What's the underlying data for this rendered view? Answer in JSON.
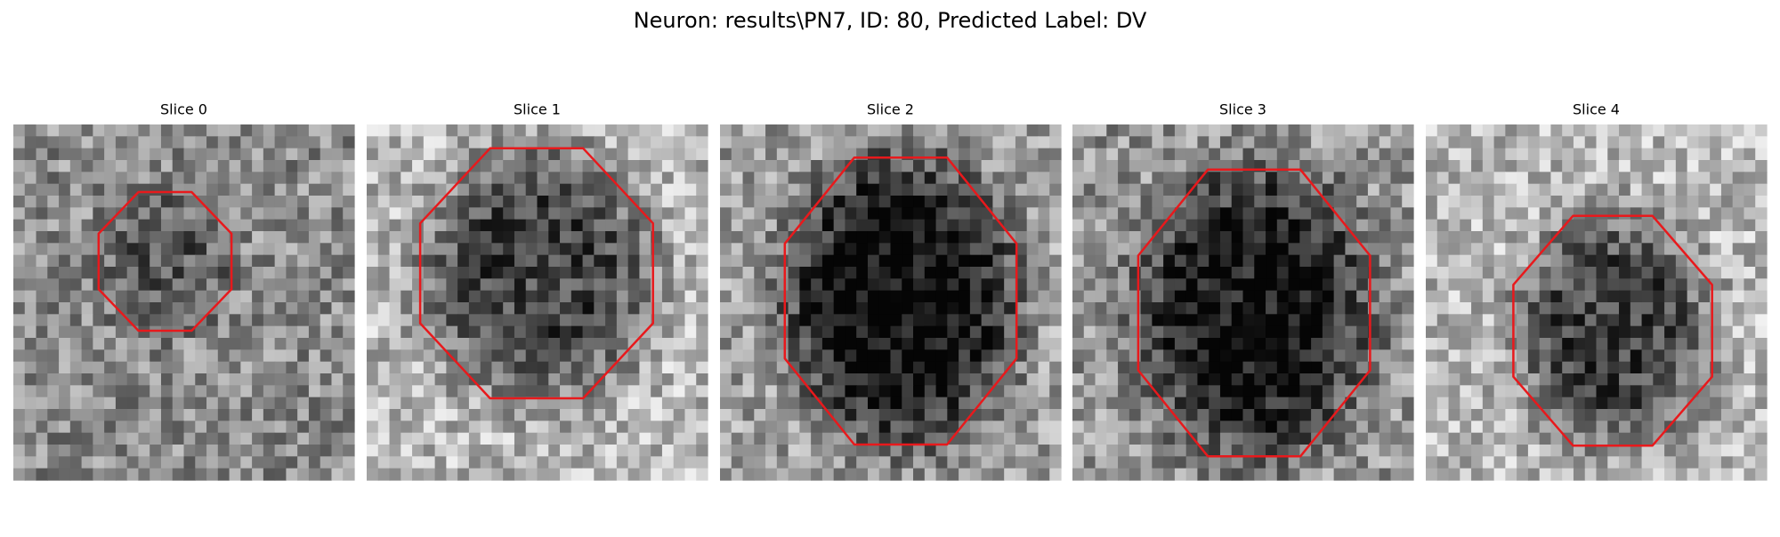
{
  "title": "Neuron: results\\PN7, ID: 80, Predicted Label: DV",
  "panels": [
    {
      "title": "Slice 0"
    },
    {
      "title": "Slice 1"
    },
    {
      "title": "Slice 2"
    },
    {
      "title": "Slice 3"
    },
    {
      "title": "Slice 4"
    }
  ]
}
